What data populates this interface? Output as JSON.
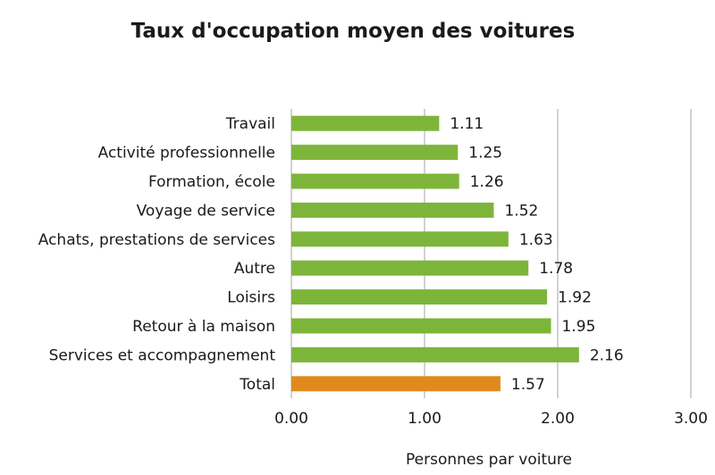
{
  "chart_data": {
    "type": "bar",
    "orientation": "horizontal",
    "title": "Taux d'occupation moyen des voitures",
    "xlabel": "Personnes par voiture",
    "ylabel": "",
    "categories": [
      "Travail",
      "Activité professionnelle",
      "Formation, école",
      "Voyage de service",
      "Achats, prestations de services",
      "Autre",
      "Loisirs",
      "Retour à la maison",
      "Services et accompagnement",
      "Total"
    ],
    "values": [
      1.11,
      1.25,
      1.26,
      1.52,
      1.63,
      1.78,
      1.92,
      1.95,
      2.16,
      1.57
    ],
    "value_labels": [
      "1.11",
      "1.25",
      "1.26",
      "1.52",
      "1.63",
      "1.78",
      "1.92",
      "1.95",
      "2.16",
      "1.57"
    ],
    "xlim": [
      0,
      3
    ],
    "x_ticks": [
      "0.00",
      "1.00",
      "2.00",
      "3.00"
    ],
    "grid": "vertical",
    "legend": "none",
    "colors": {
      "bar": "#7db53a",
      "highlight_bar": "#e08a1e",
      "grid": "#a6a6a6",
      "text": "#1a1a1a"
    },
    "highlight_category": "Total"
  }
}
